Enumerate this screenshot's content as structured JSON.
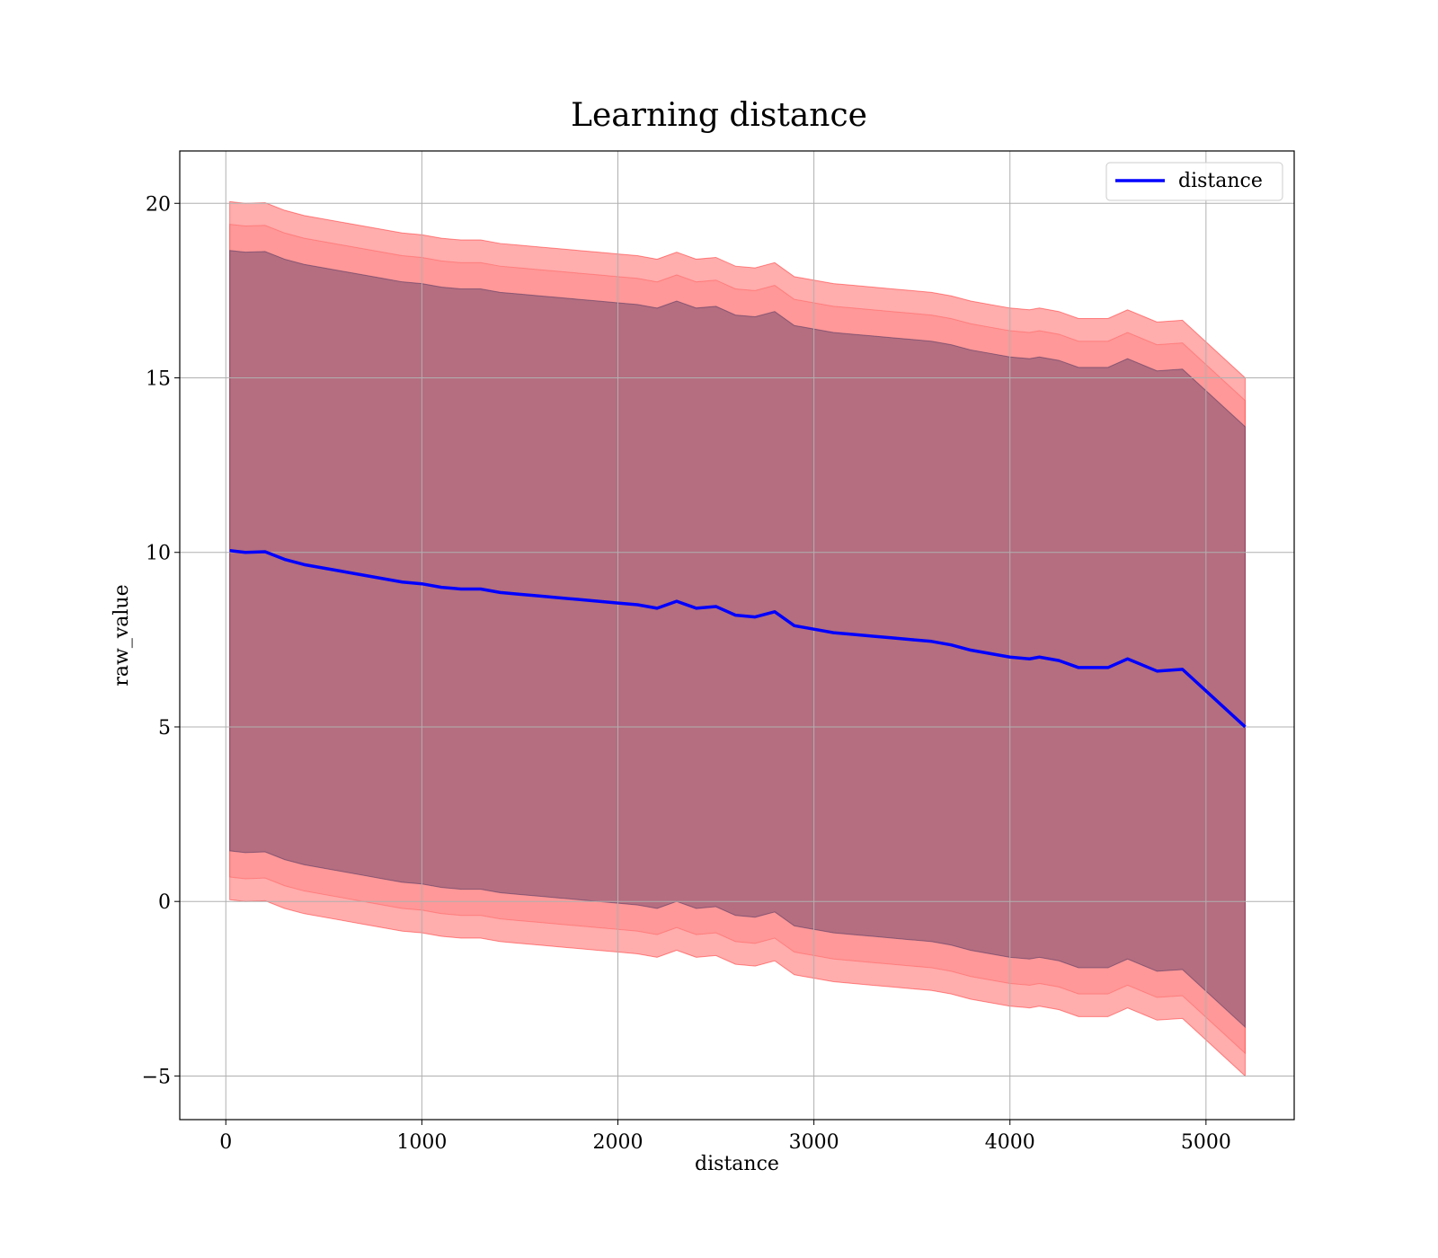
{
  "chart_data": {
    "type": "area",
    "title": "Learning distance",
    "xlabel": "distance",
    "ylabel": "raw_value",
    "xlim": [
      -235,
      5450
    ],
    "ylim": [
      -6.25,
      21.5
    ],
    "xticks": [
      0,
      1000,
      2000,
      3000,
      4000,
      5000
    ],
    "yticks": [
      -5,
      0,
      5,
      10,
      15,
      20
    ],
    "xtick_labels": [
      "0",
      "1000",
      "2000",
      "3000",
      "4000",
      "5000"
    ],
    "ytick_labels": [
      "−5",
      "0",
      "5",
      "10",
      "15",
      "20"
    ],
    "grid": true,
    "legend_position": "top-right",
    "series": [
      {
        "name": "distance",
        "color": "#0000ff",
        "x": [
          20,
          100,
          200,
          300,
          400,
          500,
          600,
          700,
          800,
          900,
          1000,
          1100,
          1200,
          1300,
          1400,
          1500,
          1600,
          1700,
          1800,
          1900,
          2000,
          2100,
          2200,
          2300,
          2400,
          2500,
          2600,
          2700,
          2800,
          2900,
          3000,
          3100,
          3200,
          3300,
          3400,
          3500,
          3600,
          3700,
          3800,
          3900,
          4000,
          4100,
          4150,
          4250,
          4350,
          4500,
          4600,
          4750,
          4880,
          5200
        ],
        "y": [
          10.05,
          10.0,
          10.02,
          9.8,
          9.65,
          9.55,
          9.45,
          9.35,
          9.25,
          9.15,
          9.1,
          9.0,
          8.95,
          8.95,
          8.85,
          8.8,
          8.75,
          8.7,
          8.65,
          8.6,
          8.55,
          8.5,
          8.4,
          8.6,
          8.4,
          8.45,
          8.2,
          8.15,
          8.3,
          7.9,
          7.8,
          7.7,
          7.65,
          7.6,
          7.55,
          7.5,
          7.45,
          7.35,
          7.2,
          7.1,
          7.0,
          6.95,
          7.0,
          6.9,
          6.7,
          6.7,
          6.95,
          6.6,
          6.65,
          5.0
        ]
      }
    ],
    "bands": [
      {
        "color": "#ff0000",
        "opacity": 0.32,
        "half_width": 10.0
      },
      {
        "color": "#ff0000",
        "opacity": 0.12,
        "half_width": 9.35
      },
      {
        "color": "#3b2a5a",
        "opacity": 0.38,
        "half_width": 8.6
      }
    ],
    "legend": [
      {
        "label": "distance",
        "color": "#0000ff"
      }
    ]
  }
}
